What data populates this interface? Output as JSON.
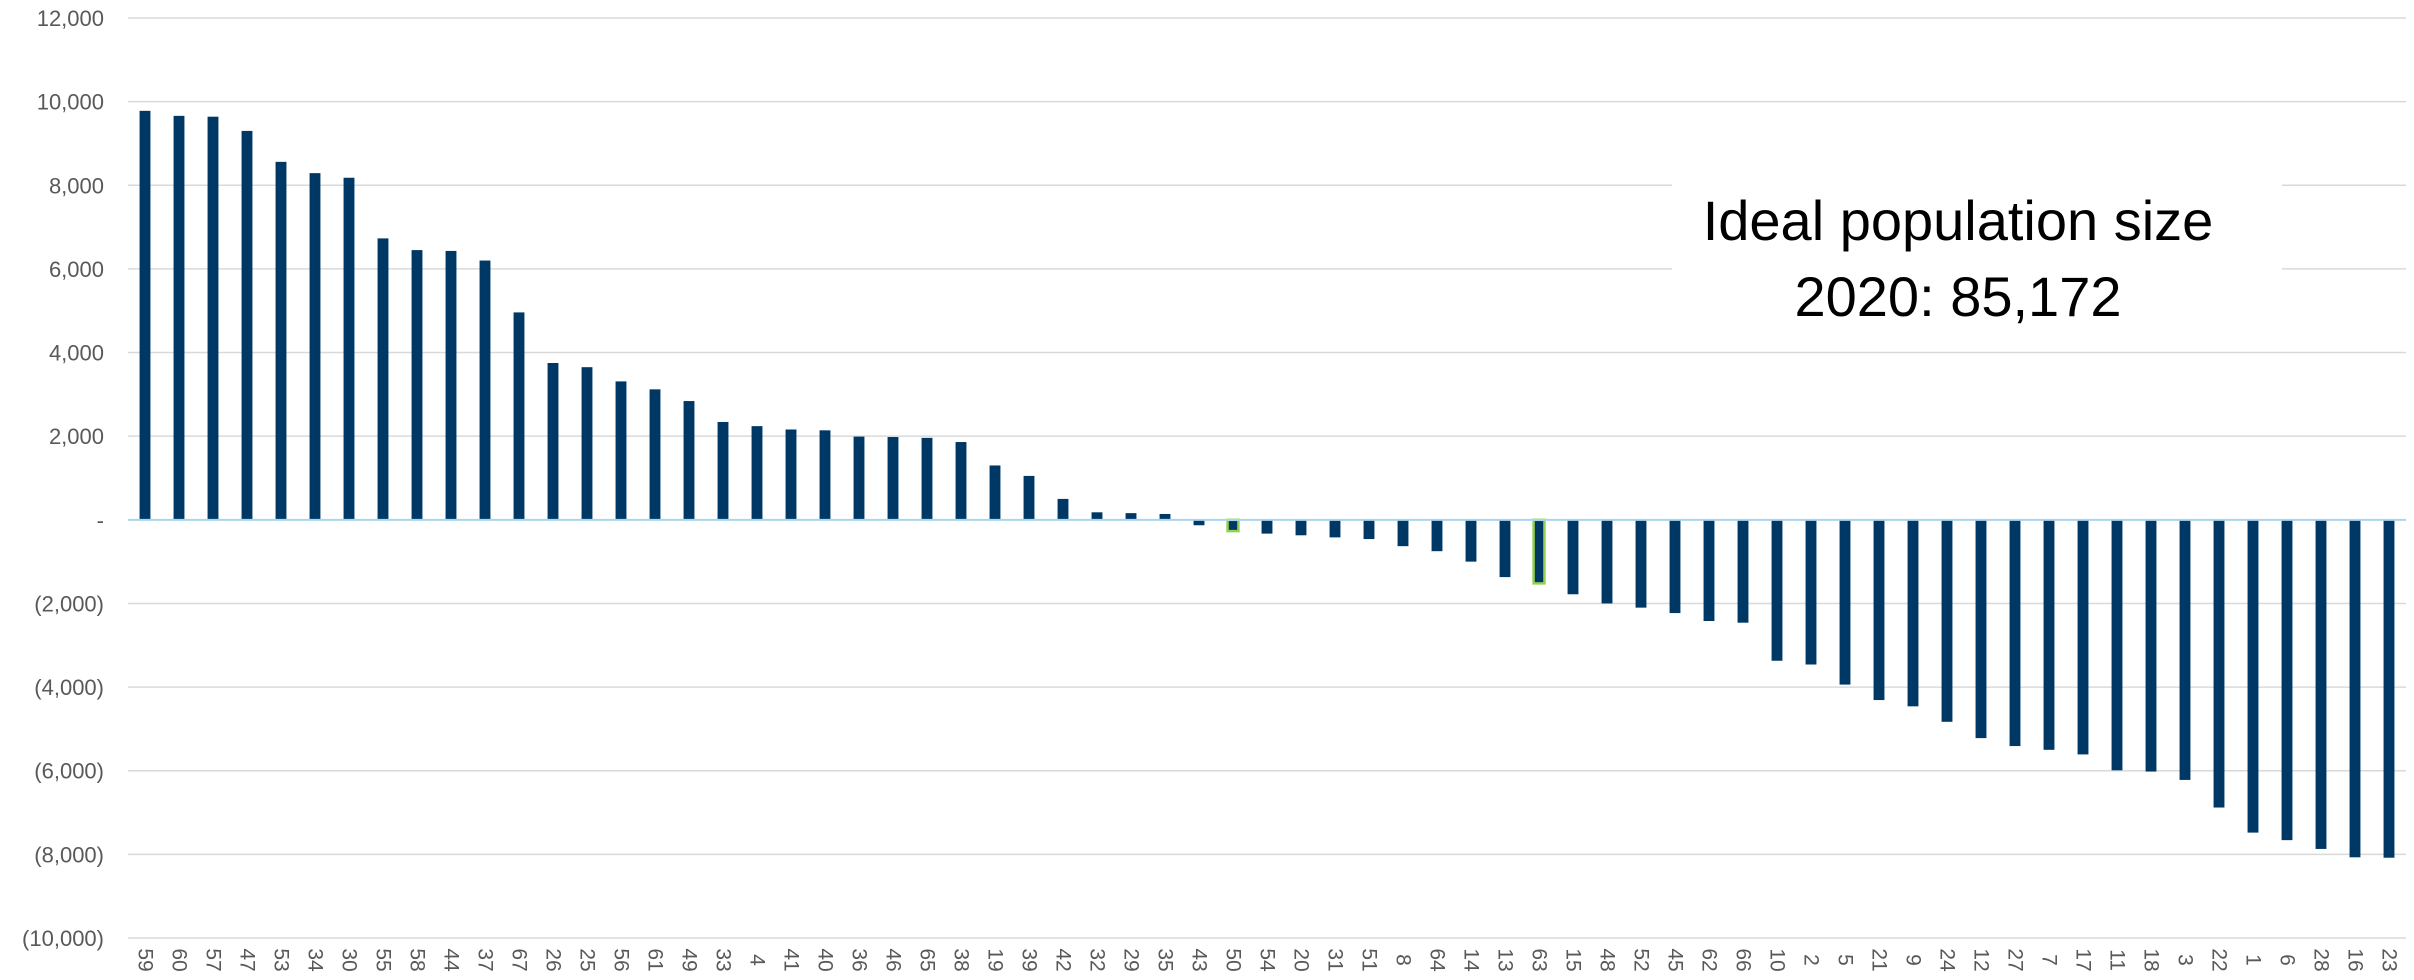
{
  "chart_data": {
    "type": "bar",
    "title": "",
    "xlabel": "",
    "ylabel": "",
    "ylim": [
      -10000,
      12000
    ],
    "ytick_values": [
      12000,
      10000,
      8000,
      6000,
      4000,
      2000,
      0,
      -2000,
      -4000,
      -6000,
      -8000,
      -10000
    ],
    "ytick_labels": [
      "12,000",
      "10,000",
      "8,000",
      "6,000",
      "4,000",
      "2,000",
      "-",
      "(2,000)",
      "(4,000)",
      "(6,000)",
      "(8,000)",
      "(10,000)"
    ],
    "grid": true,
    "categories": [
      "59",
      "60",
      "57",
      "47",
      "53",
      "34",
      "30",
      "55",
      "58",
      "44",
      "37",
      "67",
      "26",
      "25",
      "56",
      "61",
      "49",
      "33",
      "4",
      "41",
      "40",
      "36",
      "46",
      "65",
      "38",
      "19",
      "39",
      "42",
      "32",
      "29",
      "35",
      "43",
      "50",
      "54",
      "20",
      "31",
      "51",
      "8",
      "64",
      "14",
      "13",
      "63",
      "15",
      "48",
      "52",
      "45",
      "62",
      "66",
      "10",
      "2",
      "5",
      "21",
      "9",
      "24",
      "12",
      "27",
      "7",
      "17",
      "11",
      "18",
      "3",
      "22",
      "1",
      "6",
      "28",
      "16",
      "23"
    ],
    "values": [
      9780,
      9660,
      9640,
      9300,
      8560,
      8290,
      8180,
      6730,
      6450,
      6430,
      6200,
      4960,
      3750,
      3650,
      3310,
      3120,
      2840,
      2340,
      2240,
      2160,
      2140,
      1990,
      1980,
      1960,
      1860,
      1300,
      1050,
      500,
      180,
      160,
      140,
      -130,
      -270,
      -330,
      -370,
      -420,
      -460,
      -630,
      -750,
      -1000,
      -1370,
      -1520,
      -1780,
      -2000,
      -2100,
      -2230,
      -2420,
      -2460,
      -3370,
      -3460,
      -3940,
      -4310,
      -4460,
      -4830,
      -5220,
      -5410,
      -5500,
      -5610,
      -5990,
      -6020,
      -6220,
      -6880,
      -7480,
      -7660,
      -7870,
      -8070,
      -8080
    ],
    "highlighted": [
      "50",
      "63"
    ],
    "bar_color": "#003865",
    "highlight_outline_color": "#92D050",
    "zero_line_color": "#A9D4F0",
    "grid_color": "#D9D9D9",
    "annotation": {
      "line1": "Ideal population size",
      "line2": "2020: 85,172"
    }
  }
}
